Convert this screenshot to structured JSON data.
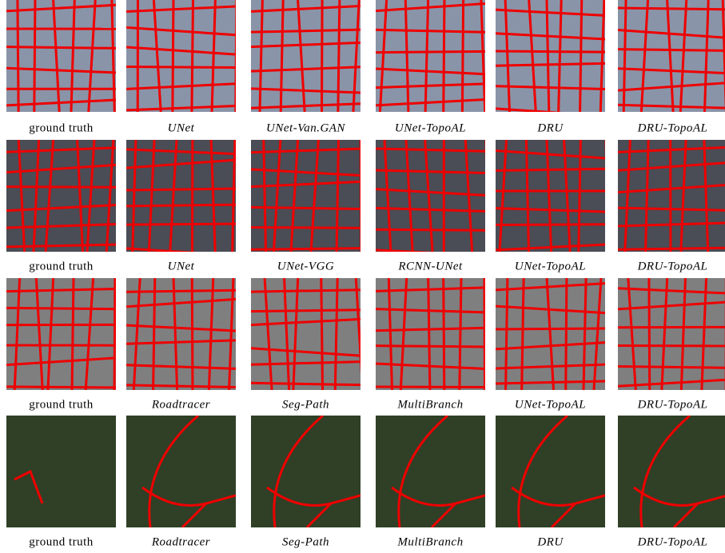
{
  "figure": {
    "rows": [
      [
        "ground truth",
        "UNet",
        "UNet-Van.GAN",
        "UNet-TopoAL",
        "DRU",
        "DRU-TopoAL"
      ],
      [
        "ground truth",
        "UNet",
        "UNet-VGG",
        "RCNN-UNet",
        "UNet-TopoAL",
        "DRU-TopoAL"
      ],
      [
        "ground truth",
        "Roadtracer",
        "Seg-Path",
        "MultiBranch",
        "UNet-TopoAL",
        "DRU-TopoAL"
      ],
      [
        "ground truth",
        "Roadtracer",
        "Seg-Path",
        "MultiBranch",
        "DRU",
        "DRU-TopoAL"
      ]
    ]
  }
}
